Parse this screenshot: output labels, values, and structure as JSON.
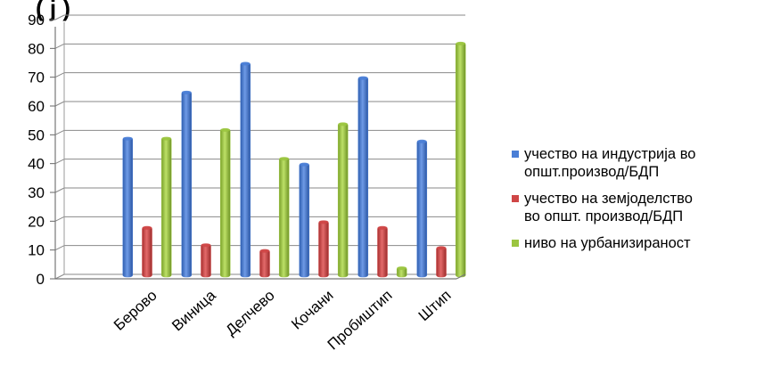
{
  "chart_data": {
    "type": "bar",
    "title_fragment": "(      ј      )",
    "xlabel": "",
    "ylabel": "",
    "ylim": [
      0,
      90
    ],
    "yticks": [
      0,
      10,
      20,
      30,
      40,
      50,
      60,
      70,
      80,
      90
    ],
    "grid": true,
    "legend_position": "right",
    "categories": [
      "Берово",
      "Виница",
      "Делчево",
      "Кочани",
      "Пробиштип",
      "Штип"
    ],
    "series": [
      {
        "name": "учество на индустрија во општ.производ/БДП",
        "legend_lines": [
          "учество на индустрија во",
          "општ.производ/БДП"
        ],
        "color": "#4a7ed6",
        "values": [
          49,
          65,
          75,
          40,
          70,
          48
        ]
      },
      {
        "name": "учество на земјоделство во општ. производ/БДП",
        "legend_lines": [
          "учество на земјоделство",
          "во општ. производ/БДП"
        ],
        "color": "#cf4646",
        "values": [
          18,
          12,
          10,
          20,
          18,
          11
        ]
      },
      {
        "name": "ниво на урбанизираност",
        "legend_lines": [
          "ниво на урбанизираност"
        ],
        "color": "#9bc540",
        "values": [
          49,
          52,
          42,
          54,
          4,
          82
        ]
      }
    ]
  }
}
